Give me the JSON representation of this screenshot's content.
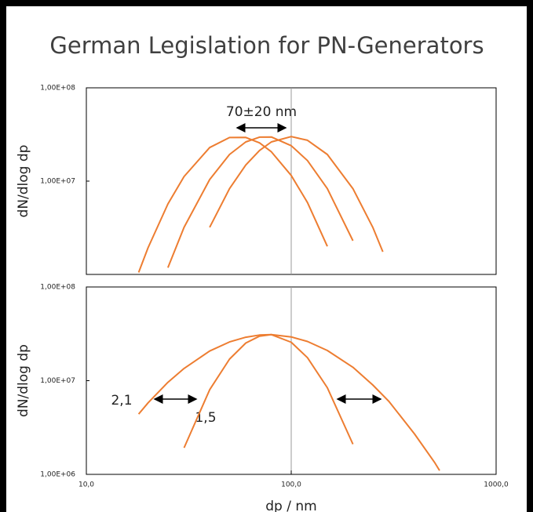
{
  "title": "German Legislation for PN-Generators",
  "chart_data": [
    {
      "type": "line",
      "ylabel": "dN/dlog dp",
      "log_x": true,
      "log_y": true,
      "xlim": [
        10,
        1000
      ],
      "ylim": [
        1000000,
        100000000
      ],
      "yticks": [
        {
          "value": 100000000,
          "label": "1,00E+08"
        },
        {
          "value": 10000000,
          "label": "1,00E+07"
        }
      ],
      "reference_x": 100,
      "annotations": [
        "70±20 nm"
      ],
      "x": [
        18,
        20,
        25,
        30,
        40,
        50,
        60,
        70,
        80,
        100,
        120,
        150,
        200,
        250,
        280
      ],
      "series": [
        {
          "color": "#ed7d31",
          "values": [
            1050000,
            1930000,
            5700000,
            11200000,
            22900000,
            29300000,
            29400000,
            25700000,
            20600000,
            11500000,
            5900000,
            2000000,
            null,
            null,
            null
          ]
        },
        {
          "color": "#ed7d31",
          "values": [
            null,
            null,
            1180000,
            3200000,
            10400000,
            19300000,
            26300000,
            29600000,
            29700000,
            24000000,
            16600000,
            8300000,
            2300000,
            null,
            null
          ]
        },
        {
          "color": "#ed7d31",
          "values": [
            null,
            null,
            null,
            null,
            3200000,
            8300000,
            14900000,
            21300000,
            26300000,
            30000000,
            27400000,
            19300000,
            8300000,
            3200000,
            1750000
          ]
        }
      ]
    },
    {
      "type": "line",
      "ylabel": "dN/dlog dp",
      "xlabel": "dp / nm",
      "log_x": true,
      "log_y": true,
      "xlim": [
        10,
        1000
      ],
      "ylim": [
        1000000,
        100000000
      ],
      "xticks": [
        {
          "value": 10,
          "label": "10,0"
        },
        {
          "value": 100,
          "label": "100,0"
        },
        {
          "value": 1000,
          "label": "1000,0"
        }
      ],
      "yticks": [
        {
          "value": 100000000,
          "label": "1,00E+08"
        },
        {
          "value": 10000000,
          "label": "1,00E+07"
        },
        {
          "value": 1000000,
          "label": "1,00E+06"
        }
      ],
      "reference_x": 100,
      "x": [
        18,
        20,
        25,
        30,
        40,
        50,
        60,
        70,
        80,
        100,
        120,
        150,
        200,
        250,
        300,
        400,
        500,
        530
      ],
      "series": [
        {
          "name": "2,1",
          "color": "#ed7d31",
          "values": [
            4400000,
            5800000,
            9600000,
            13500000,
            20700000,
            25900000,
            29100000,
            30700000,
            31000000,
            29300000,
            26200000,
            21000000,
            13900000,
            9000000,
            6000000,
            2700000,
            1350000,
            1100000
          ]
        },
        {
          "name": "1,5",
          "color": "#ed7d31",
          "values": [
            null,
            null,
            null,
            1920000,
            8000000,
            17000000,
            25200000,
            29900000,
            31000000,
            25700000,
            17600000,
            8400000,
            2100000,
            null,
            null,
            null,
            null,
            null
          ]
        }
      ]
    }
  ]
}
